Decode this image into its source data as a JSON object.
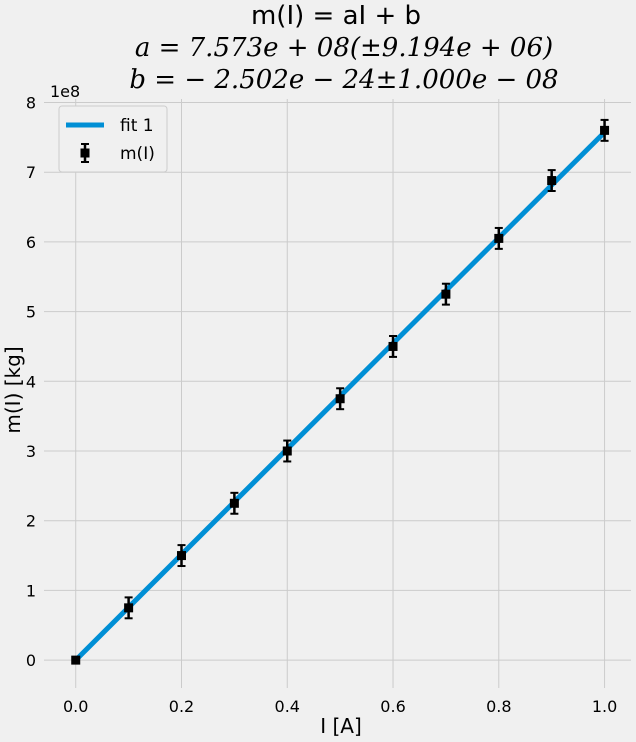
{
  "chart_data": {
    "type": "scatter",
    "title": "m(I) = aI + b",
    "subtitle_a": "a = 7.573e + 08(±9.194e + 06)",
    "subtitle_b": "b = − 2.502e − 24±1.000e − 08",
    "xlabel": "I [A]",
    "ylabel": "m(I) [kg]",
    "y_offset_label": "1e8",
    "xlim": [
      -0.06,
      1.05
    ],
    "ylim": [
      -0.4,
      8.05
    ],
    "x_ticks": [
      0.0,
      0.2,
      0.4,
      0.6,
      0.8,
      1.0
    ],
    "x_tick_labels": [
      "0.0",
      "0.2",
      "0.4",
      "0.6",
      "0.8",
      "1.0"
    ],
    "y_ticks": [
      0,
      1,
      2,
      3,
      4,
      5,
      6,
      7,
      8
    ],
    "y_tick_labels": [
      "0",
      "1",
      "2",
      "3",
      "4",
      "5",
      "6",
      "7",
      "8"
    ],
    "grid": true,
    "legend_position": "top-left",
    "series": [
      {
        "name": "fit 1",
        "kind": "line",
        "color": "#008fd5",
        "x": [
          0.0,
          1.0
        ],
        "y": [
          0.0,
          7.573
        ]
      },
      {
        "name": "m(I)",
        "kind": "errorbar",
        "color": "#000000",
        "x": [
          0.0,
          0.1,
          0.2,
          0.3,
          0.4,
          0.5,
          0.6,
          0.7,
          0.8,
          0.9,
          1.0
        ],
        "y": [
          0.0,
          0.75,
          1.5,
          2.25,
          3.0,
          3.75,
          4.5,
          5.25,
          6.05,
          6.88,
          7.6
        ],
        "yerr": [
          0.0,
          0.15,
          0.15,
          0.15,
          0.15,
          0.15,
          0.15,
          0.15,
          0.15,
          0.15,
          0.15
        ]
      }
    ]
  }
}
